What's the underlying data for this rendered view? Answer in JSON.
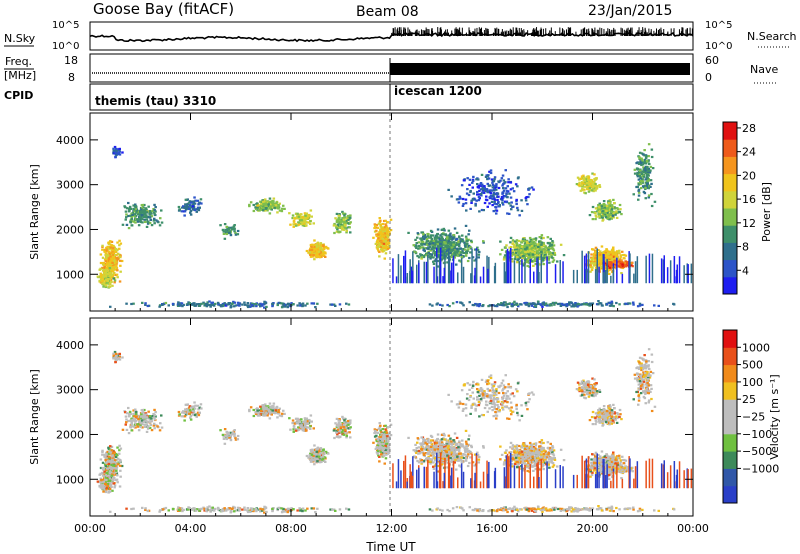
{
  "header": {
    "station": "Goose Bay (fitACF)",
    "beam": "Beam 08",
    "date": "23/Jan/2015"
  },
  "nsky_panel": {
    "left_label": "N.Sky",
    "right_label": "N.Search",
    "left_ticks": [
      "10^5",
      "10^0"
    ],
    "right_ticks": [
      "10^5",
      "10^0"
    ]
  },
  "freq_panel": {
    "left_label_1": "Freq.",
    "left_label_2": "[MHz]",
    "right_label": "Nave",
    "left_ticks": [
      "18",
      "8"
    ],
    "right_ticks": [
      "60",
      "0"
    ]
  },
  "cpid": {
    "label": "CPID",
    "segments": [
      {
        "name": "themis (tau) 3310",
        "start_hour": 0
      },
      {
        "name": "icescan 1200",
        "start_hour": 12
      }
    ]
  },
  "chart_data": [
    {
      "type": "heatmap",
      "quantity": "power",
      "ylabel": "Slant Range [km]",
      "xlabel": "Time UT",
      "x_range_hours": [
        0,
        24
      ],
      "ylim": [
        180,
        4600
      ],
      "y_ticks": [
        1000,
        2000,
        3000,
        4000
      ],
      "x_ticks": [
        "00:00",
        "04:00",
        "08:00",
        "12:00",
        "16:00",
        "20:00",
        "00:00"
      ],
      "colorbar": {
        "label": "Power [dB]",
        "ticks": [
          "4",
          "8",
          "12",
          "16",
          "20",
          "24",
          "28"
        ],
        "colors": [
          "#1e1ef0",
          "#2c54c8",
          "#2f6f8c",
          "#3e8f6a",
          "#7fbf4d",
          "#d0d43a",
          "#f0c41c",
          "#f5951e",
          "#ee5a1a",
          "#e01010"
        ]
      }
    },
    {
      "type": "heatmap",
      "quantity": "velocity",
      "ylabel": "Slant Range [km]",
      "xlabel": "Time UT",
      "x_range_hours": [
        0,
        24
      ],
      "ylim": [
        180,
        4600
      ],
      "y_ticks": [
        1000,
        2000,
        3000,
        4000
      ],
      "x_ticks": [
        "00:00",
        "04:00",
        "08:00",
        "12:00",
        "16:00",
        "20:00",
        "00:00"
      ],
      "colorbar": {
        "label": "Velocity [m s⁻¹]",
        "ticks": [
          "1000",
          "500",
          "100",
          "25",
          "−25",
          "−100",
          "−500",
          "−1000"
        ],
        "colors": [
          "#2a3fc8",
          "#3057a8",
          "#3d8a5a",
          "#6fc040",
          "#bdbdbd",
          "#bdbdbd",
          "#f0c020",
          "#f08a1a",
          "#e8501a",
          "#e01010"
        ]
      }
    }
  ]
}
